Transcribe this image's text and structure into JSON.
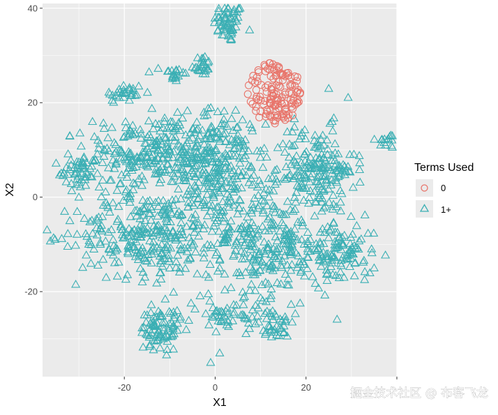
{
  "chart_data": {
    "type": "scatter",
    "title": "",
    "xlabel": "X1",
    "ylabel": "X2",
    "xlim": [
      -38,
      40
    ],
    "ylim": [
      -38,
      41
    ],
    "x_ticks": [
      -20,
      0,
      20
    ],
    "x_tick_labels": [
      "-20",
      "0",
      "20"
    ],
    "y_ticks": [
      -20,
      0,
      20,
      40
    ],
    "y_tick_labels": [
      "-20",
      "0",
      "20",
      "40"
    ],
    "grid": true,
    "legend": {
      "title": "Terms Used",
      "placement": "right"
    },
    "series": [
      {
        "name": "0",
        "marker": "circle",
        "color": "#E8756B",
        "clusters": [
          {
            "center": [
              13,
              22
            ],
            "radius": [
              6,
              6.5
            ],
            "count": 140
          }
        ]
      },
      {
        "name": "1+",
        "marker": "triangle",
        "color": "#3BAFB4",
        "clusters": [
          {
            "center": [
              3,
              37
            ],
            "radius": [
              3,
              4
            ],
            "count": 60
          },
          {
            "center": [
              -3,
              28
            ],
            "radius": [
              2,
              2
            ],
            "count": 25
          },
          {
            "center": [
              -9,
              26
            ],
            "radius": [
              2.5,
              2
            ],
            "count": 20
          },
          {
            "center": [
              -20,
              22
            ],
            "radius": [
              4,
              2
            ],
            "count": 30
          },
          {
            "center": [
              38,
              12
            ],
            "radius": [
              2.5,
              1.5
            ],
            "count": 15
          },
          {
            "center": [
              28,
              6
            ],
            "radius": [
              1.5,
              1.5
            ],
            "count": 8
          },
          {
            "center": [
              -13,
              9
            ],
            "radius": [
              14,
              7
            ],
            "count": 300
          },
          {
            "center": [
              1,
              5
            ],
            "radius": [
              9,
              12
            ],
            "count": 260
          },
          {
            "center": [
              22,
              6
            ],
            "radius": [
              8,
              8
            ],
            "count": 180
          },
          {
            "center": [
              -30,
              5
            ],
            "radius": [
              4,
              3
            ],
            "count": 40
          },
          {
            "center": [
              -15,
              -8
            ],
            "radius": [
              14,
              8
            ],
            "count": 280
          },
          {
            "center": [
              12,
              -10
            ],
            "radius": [
              13,
              10
            ],
            "count": 300
          },
          {
            "center": [
              28,
              -12
            ],
            "radius": [
              6,
              6
            ],
            "count": 90
          },
          {
            "center": [
              -12,
              -28
            ],
            "radius": [
              4,
              4
            ],
            "count": 80
          },
          {
            "center": [
              3,
              -25
            ],
            "radius": [
              10,
              3
            ],
            "count": 60
          },
          {
            "center": [
              13,
              -27
            ],
            "radius": [
              3,
              3
            ],
            "count": 30
          }
        ],
        "extra_points": [
          [
            -32,
            -5
          ],
          [
            -32,
            13
          ],
          [
            -1,
            -35
          ],
          [
            1,
            -33
          ],
          [
            -27,
            16
          ],
          [
            -24,
            -17
          ],
          [
            25,
            23
          ],
          [
            -21,
            10
          ],
          [
            35,
            -15
          ],
          [
            -30,
            0
          ]
        ]
      }
    ]
  },
  "watermark": "掘金技术社区 @ 布客飞龙"
}
